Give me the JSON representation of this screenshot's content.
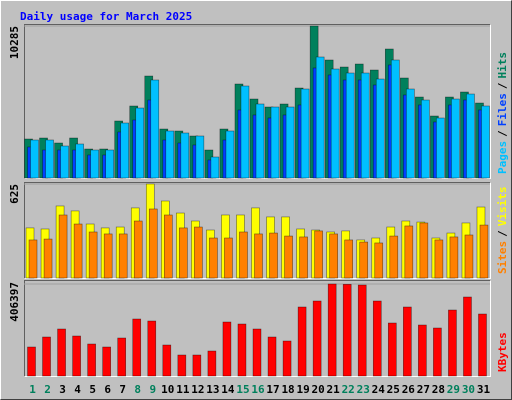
{
  "chart_data": [
    {
      "type": "bar",
      "title": "Daily usage for March 2025",
      "series": [
        {
          "name": "Hits",
          "color": "#00805c",
          "values": [
            2639,
            2706,
            2368,
            2706,
            1962,
            1962,
            3857,
            4872,
            6901,
            3315,
            3180,
            2842,
            1894,
            3315,
            6360,
            5345,
            4804,
            5007,
            6089,
            10285,
            7984,
            7510,
            7713,
            7307,
            8728,
            6766,
            5480,
            4195,
            5480,
            5819,
            5074
          ]
        },
        {
          "name": "Files",
          "color": "#0040ff",
          "values": [
            2097,
            1894,
            1894,
            1894,
            1556,
            1556,
            3112,
            3924,
            5277,
            2571,
            2368,
            2233,
            1218,
            2571,
            4601,
            4263,
            4060,
            4263,
            4939,
            7443,
            6969,
            6631,
            6631,
            6292,
            7646,
            5616,
            4939,
            3789,
            4939,
            5277,
            4601
          ]
        },
        {
          "name": "Pages",
          "color": "#00c0ff",
          "values": [
            2571,
            2571,
            2165,
            2300,
            1894,
            1894,
            3721,
            4736,
            6631,
            3180,
            3045,
            2842,
            1421,
            3180,
            6225,
            5007,
            4804,
            4804,
            6022,
            8187,
            7375,
            7104,
            7104,
            6698,
            7984,
            6022,
            5277,
            4060,
            5345,
            5683,
            4872
          ]
        }
      ],
      "ylim": [
        0,
        10285
      ],
      "yticks": [
        10285
      ],
      "legend_separator": "/"
    },
    {
      "type": "bar",
      "series": [
        {
          "name": "Visits",
          "color": "#ffff00",
          "values": [
            333,
            326,
            479,
            446,
            359,
            333,
            339,
            466,
            625,
            512,
            432,
            379,
            319,
            419,
            419,
            466,
            406,
            406,
            326,
            319,
            306,
            313,
            253,
            266,
            339,
            379,
            372,
            266,
            299,
            366,
            472
          ]
        },
        {
          "name": "Sites",
          "color": "#ff8000",
          "values": [
            253,
            259,
            419,
            359,
            306,
            293,
            293,
            379,
            459,
            419,
            333,
            339,
            266,
            266,
            306,
            293,
            299,
            279,
            273,
            313,
            293,
            253,
            239,
            233,
            279,
            346,
            366,
            253,
            273,
            286,
            352
          ]
        }
      ],
      "ylim": [
        0,
        625
      ],
      "yticks": [
        625
      ],
      "legend_separator": "/"
    },
    {
      "type": "bar",
      "series": [
        {
          "name": "KBytes",
          "color": "#ff0000",
          "values": [
            128093,
            172263,
            207599,
            176680,
            141344,
            128093,
            167846,
            251769,
            242935,
            136927,
            92757,
            92757,
            110425,
            238518,
            229684,
            207599,
            172263,
            154595,
            304773,
            331275,
            406397,
            405000,
            401947,
            331275,
            234101,
            304773,
            225267,
            212016,
            291522,
            348943,
            273854
          ]
        }
      ],
      "ylim": [
        0,
        406397
      ],
      "yticks": [
        406397
      ],
      "categories": [
        "1",
        "2",
        "3",
        "4",
        "5",
        "6",
        "7",
        "8",
        "9",
        "10",
        "11",
        "12",
        "13",
        "14",
        "15",
        "16",
        "17",
        "18",
        "19",
        "20",
        "21",
        "22",
        "23",
        "24",
        "25",
        "26",
        "27",
        "28",
        "29",
        "30",
        "31"
      ],
      "category_colors": [
        "#00805c",
        "#00805c",
        "#000000",
        "#000000",
        "#000000",
        "#000000",
        "#000000",
        "#00805c",
        "#00805c",
        "#000000",
        "#000000",
        "#000000",
        "#000000",
        "#000000",
        "#00805c",
        "#00805c",
        "#000000",
        "#000000",
        "#000000",
        "#000000",
        "#000000",
        "#00805c",
        "#00805c",
        "#000000",
        "#000000",
        "#000000",
        "#000000",
        "#000000",
        "#00805c",
        "#00805c",
        "#000000"
      ]
    }
  ]
}
